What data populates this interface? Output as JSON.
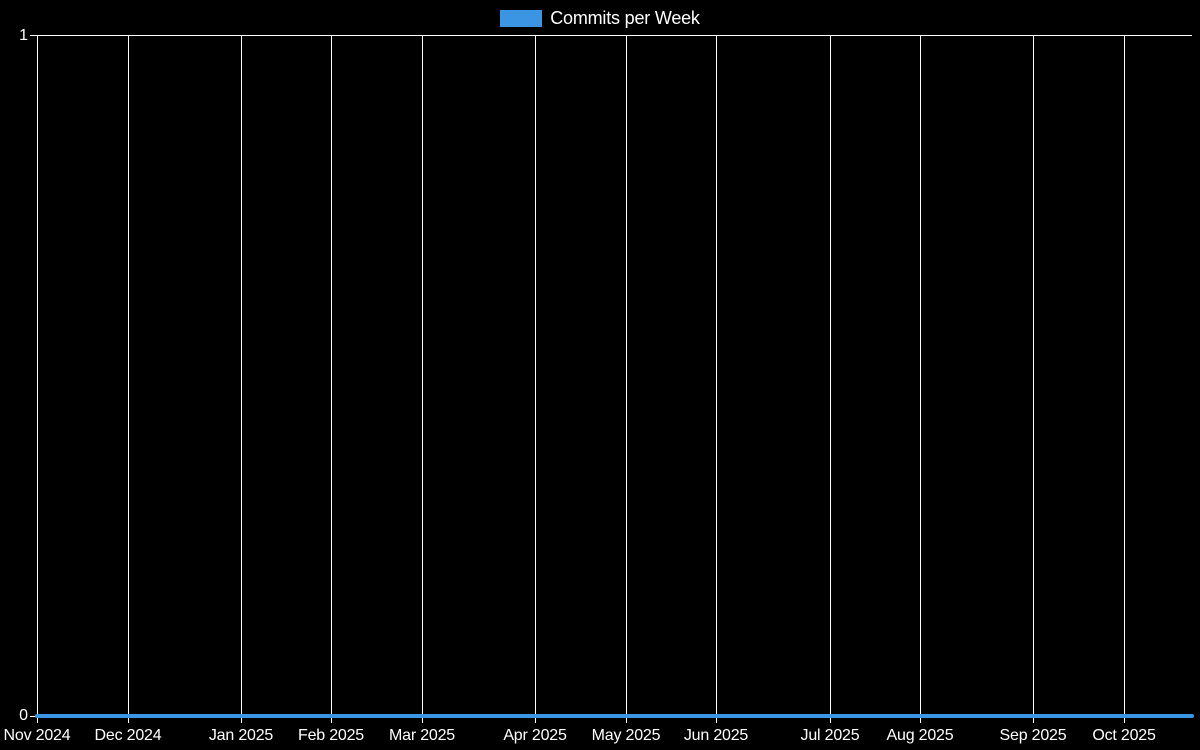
{
  "legend": {
    "label": "Commits per Week"
  },
  "colors": {
    "background": "#000000",
    "grid": "#ffffff",
    "text": "#ffffff",
    "series": "#3b95e2"
  },
  "y_axis": {
    "top_label": "1",
    "bottom_label": "0"
  },
  "chart_data": {
    "type": "line",
    "title": "Commits per Week",
    "xlabel": "",
    "ylabel": "",
    "ylim": [
      0,
      1
    ],
    "y_ticks": [
      0,
      1
    ],
    "grid": true,
    "legend_position": "top-center",
    "x_unit": "week",
    "weeks_total": 52,
    "x_ticks": [
      {
        "label": "Nov 2024",
        "week": 0
      },
      {
        "label": "Dec 2024",
        "week": 4
      },
      {
        "label": "Jan 2025",
        "week": 9
      },
      {
        "label": "Feb 2025",
        "week": 13
      },
      {
        "label": "Mar 2025",
        "week": 17
      },
      {
        "label": "Apr 2025",
        "week": 22
      },
      {
        "label": "May 2025",
        "week": 26
      },
      {
        "label": "Jun 2025",
        "week": 30
      },
      {
        "label": "Jul 2025",
        "week": 35
      },
      {
        "label": "Aug 2025",
        "week": 39
      },
      {
        "label": "Sep 2025",
        "week": 44
      },
      {
        "label": "Oct 2025",
        "week": 48
      }
    ],
    "series": [
      {
        "name": "Commits per Week",
        "color": "#3b95e2",
        "values": [
          0,
          0,
          0,
          0,
          0,
          0,
          0,
          0,
          0,
          0,
          0,
          0,
          0,
          0,
          0,
          0,
          0,
          0,
          0,
          0,
          0,
          0,
          0,
          0,
          0,
          0,
          0,
          0,
          0,
          0,
          0,
          0,
          0,
          0,
          0,
          0,
          0,
          0,
          0,
          0,
          0,
          0,
          0,
          0,
          0,
          0,
          0,
          0,
          0,
          0,
          0,
          0
        ]
      }
    ]
  }
}
